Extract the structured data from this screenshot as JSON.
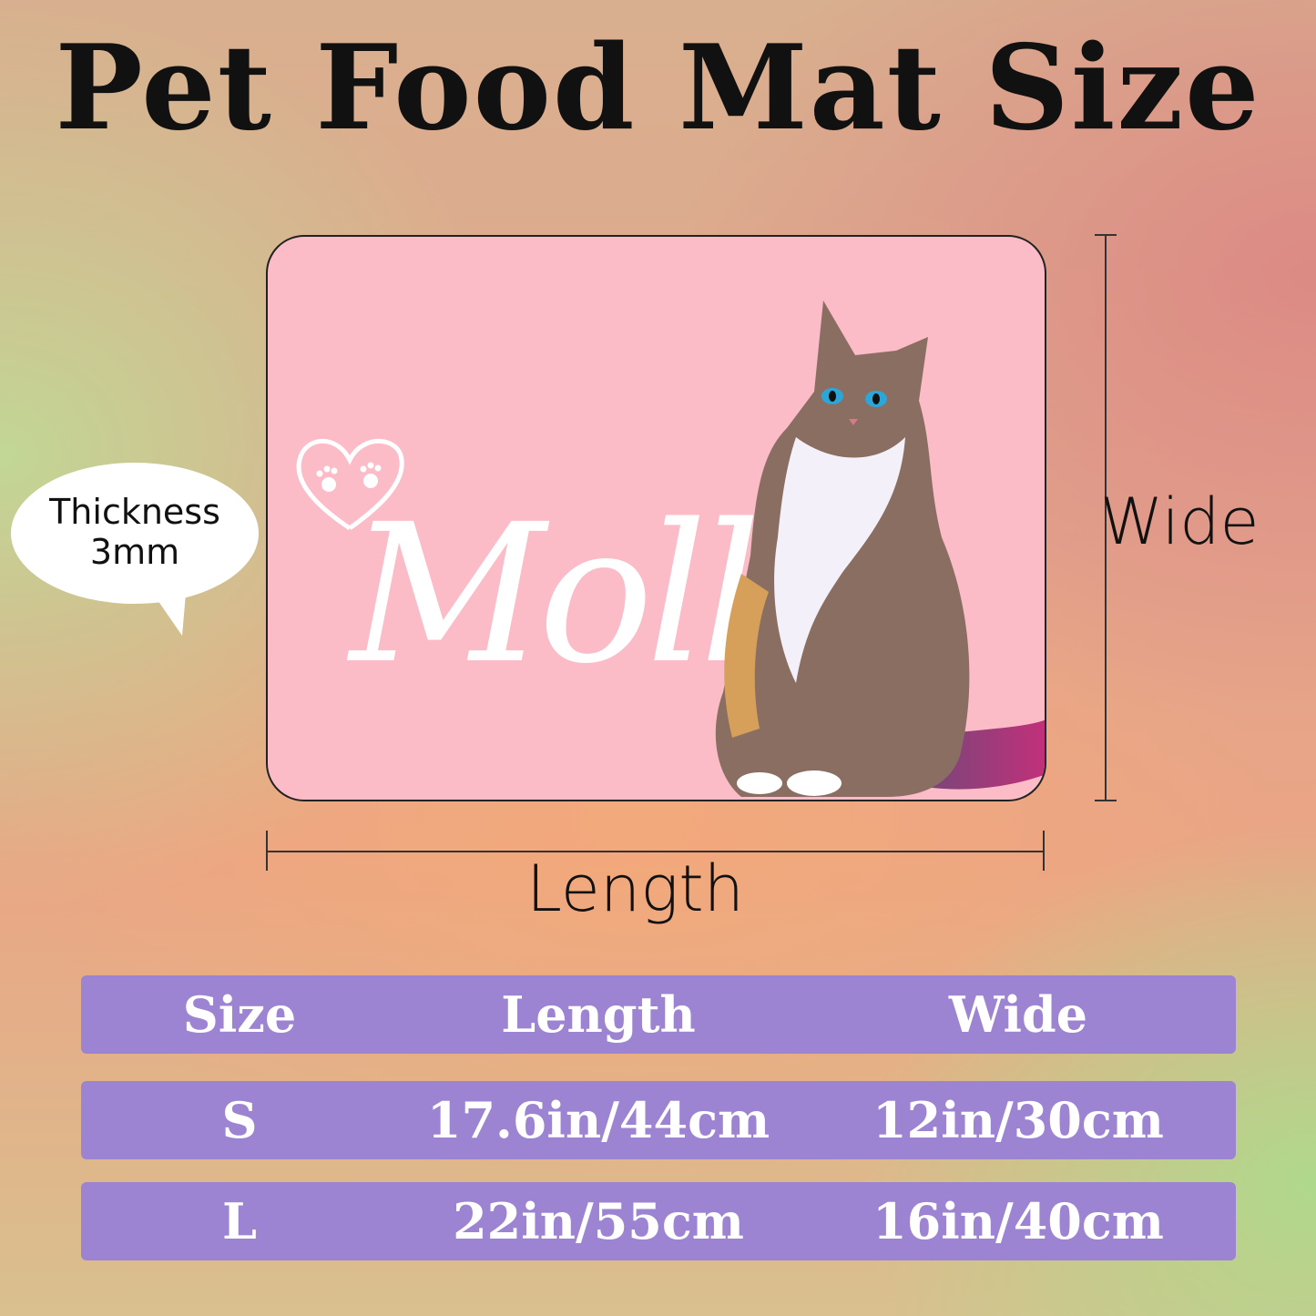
{
  "title": "Pet Food Mat Size",
  "mat": {
    "name": "Molly",
    "color": "#fbbcc8"
  },
  "bubble": {
    "line1": "Thickness",
    "line2": "3mm"
  },
  "dimensions": {
    "wide": "Wide",
    "length": "Length"
  },
  "table": {
    "color": "#9c84d2",
    "headers": [
      "Size",
      "Length",
      "Wide"
    ],
    "rows": [
      [
        "S",
        "17.6in/44cm",
        "12in/30cm"
      ],
      [
        "L",
        "22in/55cm",
        "16in/40cm"
      ]
    ]
  }
}
